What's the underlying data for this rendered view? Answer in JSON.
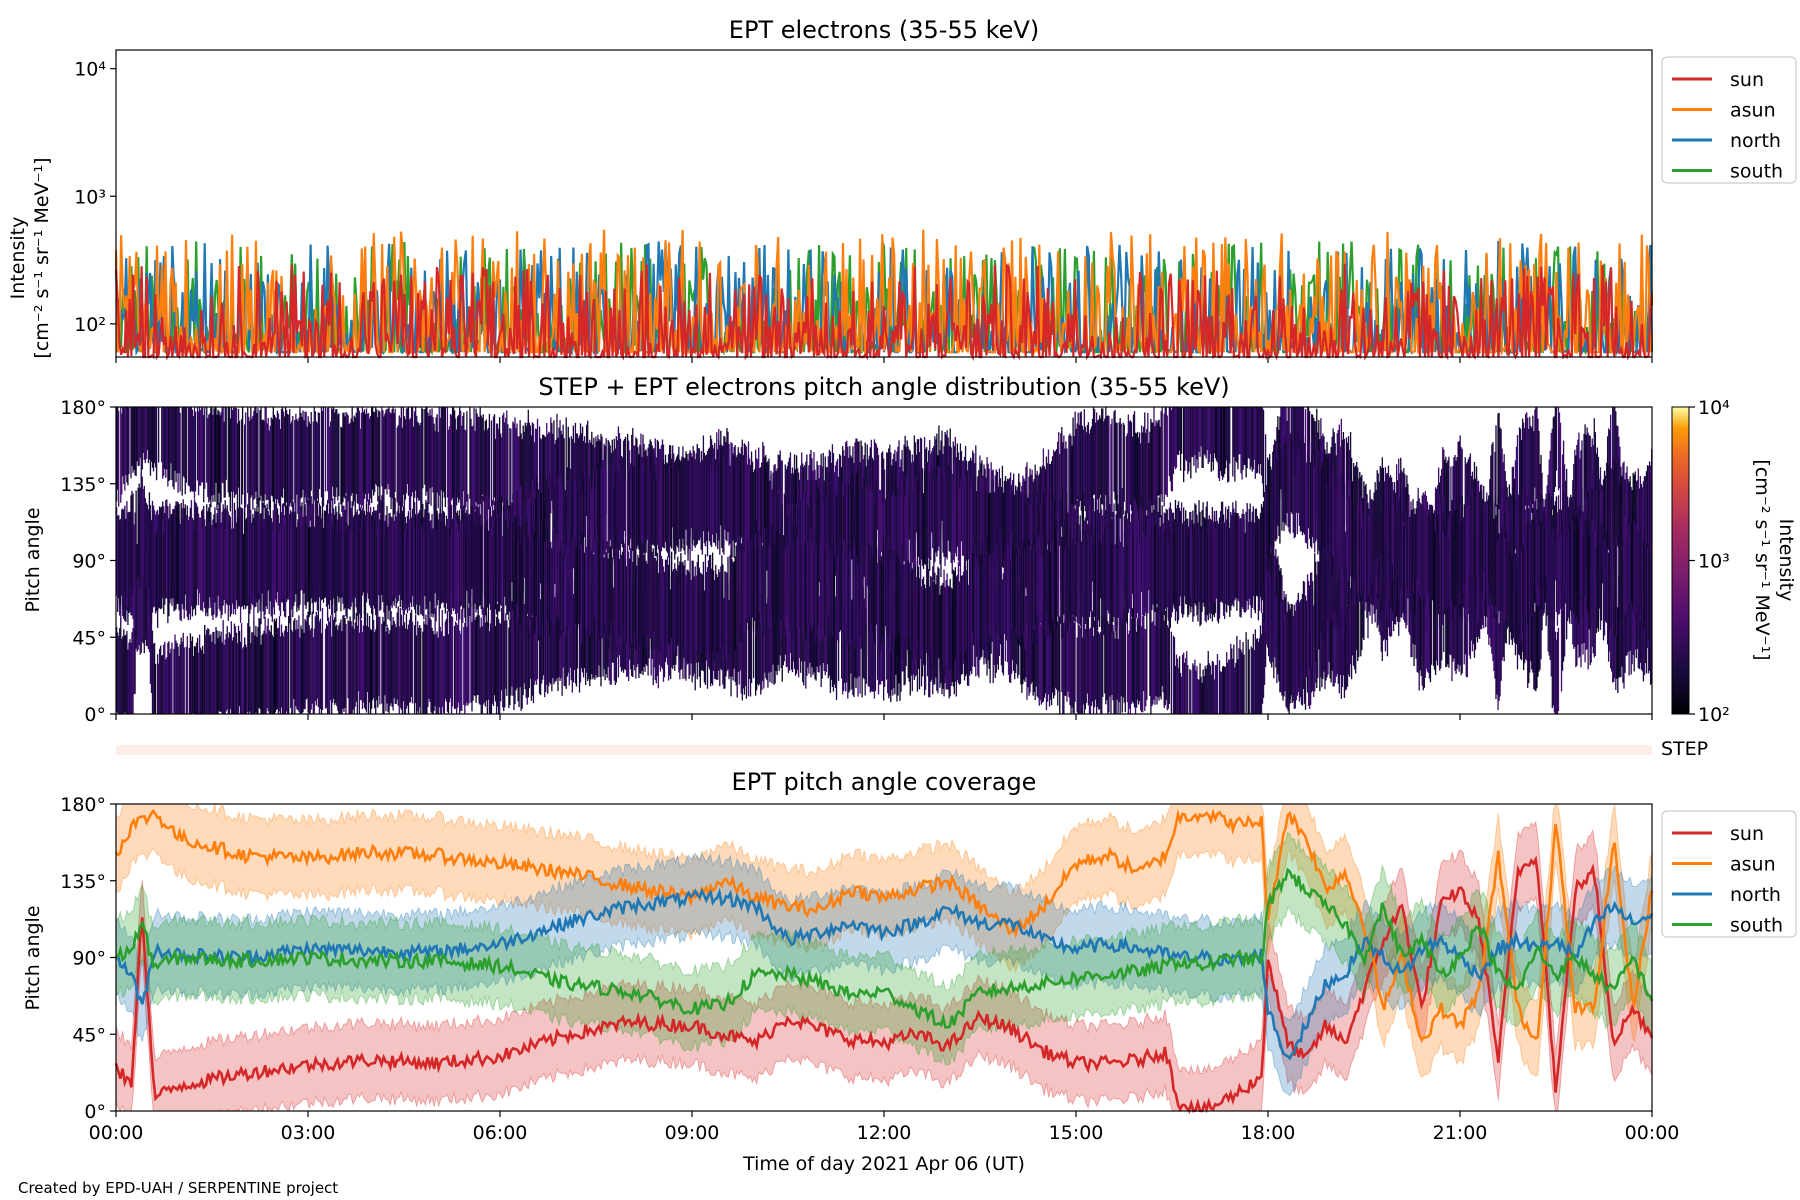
{
  "credit": "Created by EPD-UAH / SERPENTINE project",
  "colors": {
    "sun": "#d62728",
    "asun": "#ff7f0e",
    "north": "#1f77b4",
    "south": "#2ca02c",
    "step_strip": "#fdeee8"
  },
  "chart_data": [
    {
      "type": "line",
      "title": "EPT electrons (35-55 keV)",
      "ylabel_line1": "Intensity",
      "ylabel_line2": "[cm⁻² s⁻¹ sr⁻¹ MeV⁻¹]",
      "yscale": "log",
      "ylim": [
        55,
        14000
      ],
      "yticks": [
        "10²",
        "10³",
        "10⁴"
      ],
      "ytick_values": [
        100,
        1000,
        10000
      ],
      "xlim_hours": [
        0,
        24
      ],
      "legend": [
        "sun",
        "asun",
        "north",
        "south"
      ],
      "legend_placement": "outside-right-top",
      "series": [
        {
          "name": "sun",
          "color": "#d62728",
          "typical_range": [
            55,
            300
          ]
        },
        {
          "name": "asun",
          "color": "#ff7f0e",
          "typical_range": [
            60,
            550
          ]
        },
        {
          "name": "north",
          "color": "#1f77b4",
          "typical_range": [
            60,
            450
          ]
        },
        {
          "name": "south",
          "color": "#2ca02c",
          "typical_range": [
            60,
            450
          ]
        }
      ]
    },
    {
      "type": "heatmap",
      "title": "STEP + EPT electrons pitch angle distribution (35-55 keV)",
      "ylabel": "Pitch angle",
      "ylim": [
        0,
        180
      ],
      "yticks": [
        "0°",
        "45°",
        "90°",
        "135°",
        "180°"
      ],
      "colorbar": {
        "scale": "log",
        "range": [
          100,
          10000
        ],
        "ticks": [
          "10²",
          "10³",
          "10⁴"
        ],
        "label_line1": "Intensity",
        "label_line2": "[cm⁻² s⁻¹ sr⁻¹ MeV⁻¹]",
        "colormap": "inferno"
      }
    },
    {
      "type": "line",
      "title": "EPT pitch angle coverage",
      "strip_label": "STEP",
      "ylabel": "Pitch angle",
      "xlabel": "Time of day 2021 Apr 06 (UT)",
      "ylim": [
        0,
        180
      ],
      "yticks": [
        "0°",
        "45°",
        "90°",
        "135°",
        "180°"
      ],
      "xticks": [
        "00:00",
        "03:00",
        "06:00",
        "09:00",
        "12:00",
        "15:00",
        "18:00",
        "21:00",
        "00:00"
      ],
      "xlim_hours": [
        0,
        24
      ],
      "legend": [
        "sun",
        "asun",
        "north",
        "south"
      ],
      "legend_placement": "outside-right-top",
      "x_hours": [
        0,
        0.25,
        0.4,
        0.6,
        1,
        2,
        3,
        4,
        5,
        6,
        7,
        8,
        9,
        9.5,
        10,
        10.5,
        11,
        11.5,
        12,
        12.5,
        13,
        13.5,
        14,
        14.5,
        15,
        15.5,
        16,
        16.4,
        16.6,
        17,
        17.5,
        17.9,
        18,
        18.3,
        18.6,
        18.9,
        19.2,
        19.5,
        19.8,
        20.1,
        20.4,
        20.7,
        21,
        21.3,
        21.6,
        21.9,
        22.2,
        22.5,
        22.8,
        23.1,
        23.4,
        23.7,
        24
      ],
      "series": [
        {
          "name": "sun",
          "color": "#d62728",
          "values": [
            25,
            15,
            120,
            8,
            15,
            22,
            27,
            30,
            28,
            32,
            44,
            52,
            50,
            45,
            40,
            55,
            48,
            42,
            40,
            45,
            38,
            55,
            48,
            35,
            28,
            28,
            30,
            35,
            5,
            0,
            10,
            20,
            90,
            40,
            30,
            50,
            40,
            70,
            100,
            120,
            60,
            120,
            130,
            110,
            30,
            140,
            150,
            10,
            130,
            140,
            40,
            60,
            45
          ]
        },
        {
          "name": "asun",
          "color": "#ff7f0e",
          "values": [
            150,
            168,
            170,
            175,
            160,
            150,
            148,
            152,
            150,
            145,
            140,
            132,
            125,
            135,
            125,
            120,
            118,
            130,
            125,
            130,
            135,
            120,
            105,
            120,
            145,
            150,
            140,
            150,
            172,
            175,
            168,
            170,
            110,
            175,
            160,
            130,
            140,
            110,
            60,
            90,
            40,
            60,
            50,
            70,
            150,
            60,
            40,
            170,
            60,
            60,
            160,
            60,
            130
          ]
        },
        {
          "name": "north",
          "color": "#1f77b4",
          "values": [
            90,
            80,
            60,
            95,
            92,
            90,
            95,
            94,
            93,
            98,
            110,
            120,
            125,
            125,
            120,
            100,
            105,
            110,
            105,
            110,
            118,
            110,
            110,
            100,
            95,
            98,
            95,
            92,
            90,
            90,
            88,
            92,
            60,
            30,
            50,
            75,
            80,
            100,
            90,
            80,
            95,
            100,
            90,
            80,
            95,
            100,
            95,
            100,
            90,
            110,
            120,
            110,
            115
          ]
        },
        {
          "name": "south",
          "color": "#2ca02c",
          "values": [
            90,
            95,
            110,
            85,
            90,
            88,
            90,
            88,
            88,
            85,
            75,
            70,
            60,
            62,
            80,
            80,
            75,
            68,
            70,
            60,
            50,
            70,
            72,
            75,
            78,
            80,
            82,
            85,
            88,
            85,
            90,
            88,
            120,
            140,
            130,
            120,
            110,
            90,
            120,
            90,
            100,
            80,
            90,
            110,
            80,
            70,
            95,
            80,
            90,
            80,
            70,
            90,
            65
          ]
        }
      ]
    }
  ]
}
